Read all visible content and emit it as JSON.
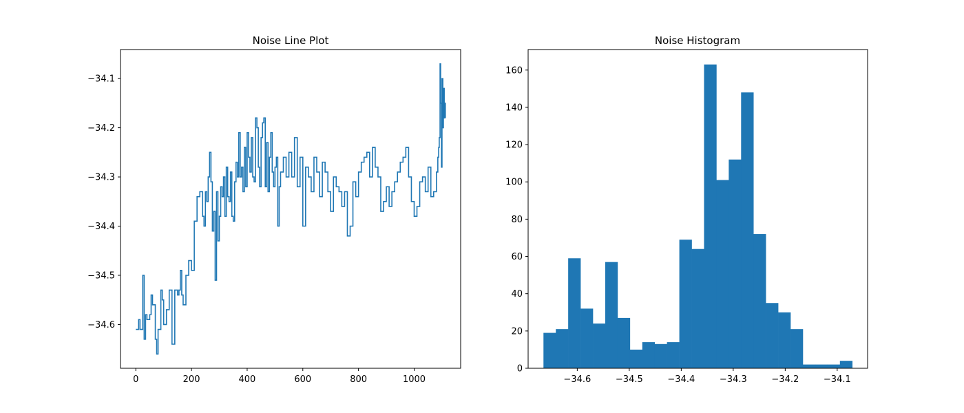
{
  "chart_data": [
    {
      "type": "line",
      "title": "Noise Line Plot",
      "xlabel": "",
      "ylabel": "",
      "xlim": [
        -55,
        1167
      ],
      "ylim": [
        -34.689,
        -34.041
      ],
      "xticks": [
        0,
        200,
        400,
        600,
        800,
        1000
      ],
      "xtick_labels": [
        "0",
        "200",
        "400",
        "600",
        "800",
        "1000"
      ],
      "yticks": [
        -34.6,
        -34.5,
        -34.4,
        -34.3,
        -34.2,
        -34.1
      ],
      "ytick_labels": [
        "−34.6",
        "−34.5",
        "−34.4",
        "−34.3",
        "−34.2",
        "−34.1"
      ],
      "color": "#1f77b4",
      "grid": false,
      "series": [
        {
          "x": [
            0,
            10,
            15,
            25,
            30,
            35,
            40,
            50,
            55,
            60,
            70,
            75,
            80,
            90,
            95,
            100,
            110,
            120,
            130,
            140,
            150,
            155,
            160,
            165,
            170,
            180,
            190,
            200,
            210,
            220,
            230,
            240,
            245,
            250,
            255,
            260,
            265,
            270,
            275,
            280,
            285,
            290,
            295,
            300,
            305,
            310,
            315,
            320,
            325,
            330,
            335,
            340,
            345,
            350,
            355,
            360,
            365,
            370,
            375,
            380,
            385,
            390,
            395,
            400,
            405,
            410,
            415,
            420,
            425,
            430,
            435,
            440,
            445,
            450,
            455,
            460,
            465,
            470,
            475,
            480,
            485,
            490,
            495,
            500,
            505,
            510,
            515,
            520,
            530,
            540,
            550,
            560,
            570,
            580,
            590,
            600,
            610,
            620,
            630,
            640,
            650,
            660,
            670,
            680,
            690,
            700,
            710,
            720,
            730,
            740,
            750,
            760,
            770,
            780,
            790,
            800,
            810,
            820,
            830,
            840,
            850,
            860,
            870,
            880,
            890,
            900,
            910,
            920,
            930,
            940,
            950,
            960,
            970,
            980,
            990,
            1000,
            1010,
            1020,
            1030,
            1040,
            1050,
            1060,
            1070,
            1080,
            1085,
            1088,
            1090,
            1093,
            1095,
            1098,
            1100,
            1103,
            1105,
            1108,
            1110,
            1112
          ],
          "y": [
            -34.61,
            -34.59,
            -34.61,
            -34.5,
            -34.63,
            -34.58,
            -34.59,
            -34.58,
            -34.54,
            -34.56,
            -34.63,
            -34.66,
            -34.61,
            -34.53,
            -34.55,
            -34.6,
            -34.57,
            -34.53,
            -34.64,
            -34.53,
            -34.54,
            -34.53,
            -34.49,
            -34.54,
            -34.56,
            -34.5,
            -34.47,
            -34.49,
            -34.39,
            -34.34,
            -34.33,
            -34.38,
            -34.4,
            -34.33,
            -34.35,
            -34.3,
            -34.25,
            -34.31,
            -34.41,
            -34.37,
            -34.51,
            -34.33,
            -34.43,
            -34.38,
            -34.32,
            -34.34,
            -34.3,
            -34.38,
            -34.28,
            -34.34,
            -34.35,
            -34.29,
            -34.38,
            -34.39,
            -34.31,
            -34.27,
            -34.3,
            -34.21,
            -34.3,
            -34.28,
            -34.33,
            -34.24,
            -34.32,
            -34.21,
            -34.26,
            -34.29,
            -34.22,
            -34.3,
            -34.31,
            -34.18,
            -34.2,
            -34.28,
            -34.32,
            -34.22,
            -34.19,
            -34.18,
            -34.32,
            -34.23,
            -34.33,
            -34.26,
            -34.21,
            -34.29,
            -34.32,
            -34.28,
            -34.26,
            -34.4,
            -34.32,
            -34.29,
            -34.26,
            -34.3,
            -34.25,
            -34.3,
            -34.22,
            -34.32,
            -34.26,
            -34.4,
            -34.28,
            -34.3,
            -34.33,
            -34.26,
            -34.29,
            -34.34,
            -34.27,
            -34.29,
            -34.33,
            -34.37,
            -34.3,
            -34.32,
            -34.33,
            -34.36,
            -34.33,
            -34.42,
            -34.4,
            -34.31,
            -34.34,
            -34.29,
            -34.27,
            -34.26,
            -34.25,
            -34.3,
            -34.24,
            -34.28,
            -34.3,
            -34.37,
            -34.35,
            -34.32,
            -34.36,
            -34.33,
            -34.31,
            -34.29,
            -34.27,
            -34.26,
            -34.24,
            -34.3,
            -34.35,
            -34.38,
            -34.36,
            -34.31,
            -34.3,
            -34.33,
            -34.28,
            -34.34,
            -34.33,
            -34.29,
            -34.26,
            -34.24,
            -34.22,
            -34.07,
            -34.15,
            -34.28,
            -34.1,
            -34.2,
            -34.12,
            -34.18,
            -34.15,
            -34.18
          ]
        }
      ]
    },
    {
      "type": "bar",
      "title": "Noise Histogram",
      "xlabel": "",
      "ylabel": "",
      "xlim": [
        -34.6945,
        -34.0415
      ],
      "ylim": [
        0,
        171
      ],
      "xticks": [
        -34.6,
        -34.5,
        -34.4,
        -34.3,
        -34.2,
        -34.1
      ],
      "xtick_labels": [
        "−34.6",
        "−34.5",
        "−34.4",
        "−34.3",
        "−34.2",
        "−34.1"
      ],
      "yticks": [
        0,
        20,
        40,
        60,
        80,
        100,
        120,
        140,
        160
      ],
      "ytick_labels": [
        "0",
        "20",
        "40",
        "60",
        "80",
        "100",
        "120",
        "140",
        "160"
      ],
      "color": "#1f77b4",
      "grid": false,
      "bin_range": [
        -34.665,
        -34.071
      ],
      "counts": [
        19,
        21,
        59,
        32,
        24,
        57,
        27,
        10,
        14,
        13,
        14,
        69,
        64,
        163,
        101,
        112,
        148,
        72,
        35,
        30,
        21,
        2,
        2,
        2,
        4
      ]
    }
  ]
}
